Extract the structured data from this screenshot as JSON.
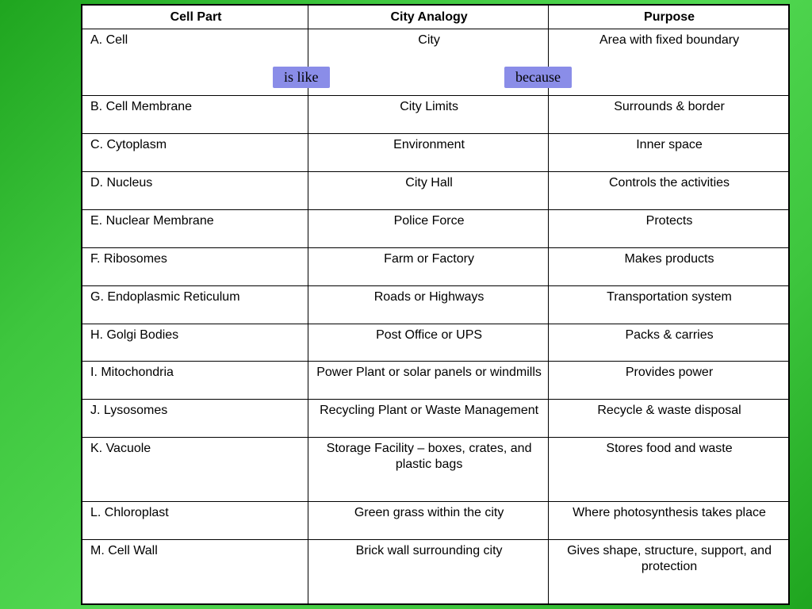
{
  "table": {
    "background_color": "#ffffff",
    "border_color": "#000000",
    "font_family": "Comic Sans MS",
    "font_size_pt": 12,
    "columns": [
      {
        "header": "Cell Part",
        "width_pct": 32,
        "align": "left"
      },
      {
        "header": "City Analogy",
        "width_pct": 34,
        "align": "center"
      },
      {
        "header": "Purpose",
        "width_pct": 34,
        "align": "center"
      }
    ],
    "rows": [
      {
        "part": "A. Cell",
        "analogy": "City",
        "purpose": "Area with fixed boundary"
      },
      {
        "part": "B. Cell Membrane",
        "analogy": "City Limits",
        "purpose": "Surrounds & border"
      },
      {
        "part": "C. Cytoplasm",
        "analogy": "Environment",
        "purpose": "Inner space"
      },
      {
        "part": "D. Nucleus",
        "analogy": "City Hall",
        "purpose": "Controls the activities"
      },
      {
        "part": "E. Nuclear Membrane",
        "analogy": "Police Force",
        "purpose": "Protects"
      },
      {
        "part": "F. Ribosomes",
        "analogy": "Farm or Factory",
        "purpose": "Makes products"
      },
      {
        "part": "G. Endoplasmic Reticulum",
        "analogy": "Roads or Highways",
        "purpose": "Transportation system"
      },
      {
        "part": "H. Golgi Bodies",
        "analogy": "Post Office or UPS",
        "purpose": "Packs & carries"
      },
      {
        "part": "I. Mitochondria",
        "analogy": "Power Plant or solar panels or windmills",
        "purpose": "Provides power"
      },
      {
        "part": "J. Lysosomes",
        "analogy": "Recycling Plant or Waste Management",
        "purpose": "Recycle & waste disposal"
      },
      {
        "part": "K. Vacuole",
        "analogy": "Storage Facility – boxes, crates, and plastic bags",
        "purpose": "Stores food and waste"
      },
      {
        "part": "L. Chloroplast",
        "analogy": "Green grass within the city",
        "purpose": "Where photosynthesis takes place"
      },
      {
        "part": "M. Cell Wall",
        "analogy": "Brick wall surrounding city",
        "purpose": "Gives shape, structure, support, and protection"
      }
    ]
  },
  "badges": {
    "is_like": "is like",
    "because": "because",
    "background_color": "#8a8de8",
    "font_family": "Times New Roman",
    "font_size_pt": 14
  },
  "page_background_gradient": [
    "#1fa51f",
    "#3ec63e",
    "#52d852",
    "#3ec63e",
    "#1fa51f"
  ]
}
